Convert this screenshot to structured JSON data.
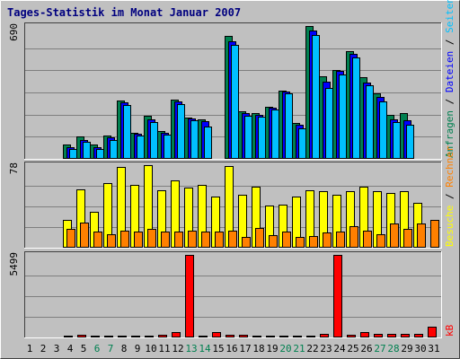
{
  "colors": {
    "background": "#c0c0c0",
    "title": "#00007f",
    "grid": "#7f7f7f",
    "frame_light": "#ffffff",
    "frame_dark": "#404040",
    "requests": "#008050",
    "files": "#0000ff",
    "pages": "#00c0ff",
    "visits": "#ffff00",
    "sites": "#ff8000",
    "kbytes": "#ff0000",
    "weekend_day": "#008050",
    "weekday": "#000000"
  },
  "chart_data": {
    "type": "bar",
    "title": "Tages-Statistik im Monat Januar 2007",
    "categories": [
      "1",
      "2",
      "3",
      "4",
      "5",
      "6",
      "7",
      "8",
      "9",
      "10",
      "11",
      "12",
      "13",
      "14",
      "15",
      "16",
      "17",
      "18",
      "19",
      "20",
      "21",
      "22",
      "23",
      "24",
      "25",
      "26",
      "27",
      "28",
      "29",
      "30",
      "31"
    ],
    "weekend_days": [
      "6",
      "7",
      "13",
      "14",
      "20",
      "21",
      "27",
      "28"
    ],
    "panels": [
      {
        "id": "hits",
        "max_label": "690",
        "max_value": 690,
        "legend": [
          {
            "label": "Anfragen",
            "color": "#008050"
          },
          {
            "label": "Dateien",
            "color": "#0000ff"
          },
          {
            "label": "Seiten",
            "color": "#00c0ff"
          }
        ],
        "series": [
          {
            "name": "Anfragen",
            "values": [
              0,
              0,
              0,
              75,
              115,
              75,
              120,
              305,
              135,
              225,
              145,
              310,
              215,
              205,
              0,
              640,
              245,
              240,
              270,
              355,
              185,
              690,
              430,
              460,
              560,
              425,
              340,
              230,
              240,
              0,
              0
            ]
          },
          {
            "name": "Dateien",
            "values": [
              0,
              0,
              0,
              60,
              100,
              60,
              110,
              295,
              130,
              205,
              135,
              300,
              210,
              195,
              0,
              610,
              240,
              230,
              265,
              350,
              175,
              665,
              400,
              455,
              545,
              395,
              320,
              205,
              200,
              0,
              0
            ]
          },
          {
            "name": "Seiten",
            "values": [
              0,
              0,
              0,
              50,
              90,
              50,
              100,
              280,
              120,
              190,
              125,
              285,
              200,
              170,
              0,
              590,
              225,
              220,
              255,
              340,
              160,
              645,
              370,
              440,
              525,
              380,
              300,
              190,
              175,
              0,
              0
            ]
          }
        ]
      },
      {
        "id": "visits",
        "max_label": "78",
        "max_value": 78,
        "legend": [
          {
            "label": "Besuche",
            "color": "#ffff00"
          },
          {
            "label": "Rechner",
            "color": "#ff8000"
          }
        ],
        "series": [
          {
            "name": "Besuche",
            "values": [
              0,
              0,
              0,
              26,
              55,
              34,
              61,
              76,
              59,
              78,
              54,
              64,
              57,
              59,
              48,
              77,
              50,
              58,
              40,
              41,
              48,
              54,
              53,
              50,
              53,
              58,
              53,
              52,
              53,
              42,
              0
            ]
          },
          {
            "name": "Rechner",
            "values": [
              0,
              0,
              0,
              18,
              24,
              15,
              13,
              16,
              15,
              18,
              15,
              15,
              16,
              15,
              15,
              16,
              10,
              19,
              12,
              15,
              10,
              11,
              14,
              15,
              20,
              16,
              13,
              23,
              18,
              23,
              26
            ]
          }
        ]
      },
      {
        "id": "kbytes",
        "max_label": "5499",
        "max_value": 5499,
        "legend": [
          {
            "label": "kB",
            "color": "#ff0000"
          }
        ],
        "series": [
          {
            "name": "kB",
            "values": [
              0,
              0,
              0,
              60,
              150,
              60,
              60,
              60,
              60,
              60,
              150,
              350,
              5499,
              60,
              350,
              150,
              150,
              60,
              60,
              60,
              60,
              60,
              250,
              5499,
              170,
              350,
              250,
              250,
              250,
              250,
              700
            ]
          }
        ]
      }
    ]
  }
}
